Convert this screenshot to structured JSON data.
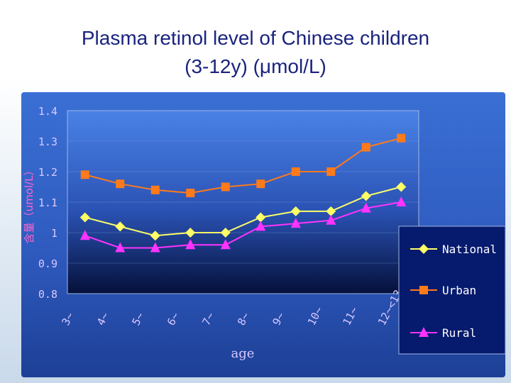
{
  "title": {
    "line1": "Plasma retinol level of Chinese children",
    "line2": "(3-12y) (μmol/L)"
  },
  "chart_data": {
    "type": "line",
    "title": "Plasma retinol level of Chinese children (3-12y) (μmol/L)",
    "xlabel": "age",
    "ylabel": "含量（umol/L）",
    "ylim": [
      0.8,
      1.4
    ],
    "yticks": [
      0.8,
      0.9,
      1.0,
      1.1,
      1.2,
      1.3,
      1.4
    ],
    "ytick_labels": [
      "0.8",
      "0.9",
      "1",
      "1.1",
      "1.2",
      "1.3",
      "1.4"
    ],
    "categories": [
      "3~",
      "4~",
      "5~",
      "6~",
      "7~",
      "8~",
      "9~",
      "10~",
      "11~",
      "12~<13"
    ],
    "legend_position": "right",
    "series": [
      {
        "name": "National",
        "marker": "diamond",
        "color": "#ffff66",
        "values": [
          1.05,
          1.02,
          0.99,
          1.0,
          1.0,
          1.05,
          1.07,
          1.07,
          1.12,
          1.15
        ]
      },
      {
        "name": "Urban",
        "marker": "square",
        "color": "#ff7a1a",
        "values": [
          1.19,
          1.16,
          1.14,
          1.13,
          1.15,
          1.16,
          1.2,
          1.2,
          1.28,
          1.31
        ]
      },
      {
        "name": "Rural",
        "marker": "triangle",
        "color": "#ff33ff",
        "values": [
          0.99,
          0.95,
          0.95,
          0.96,
          0.96,
          1.02,
          1.03,
          1.04,
          1.08,
          1.1
        ]
      }
    ]
  }
}
